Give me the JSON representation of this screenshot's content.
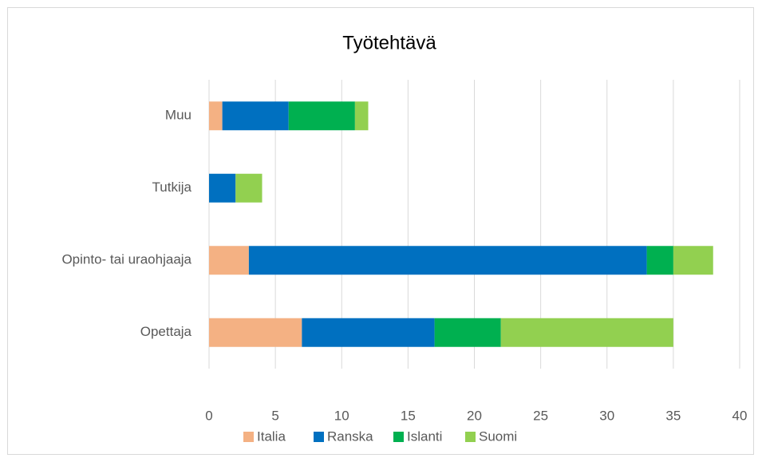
{
  "chart_data": {
    "type": "stacked-barh",
    "title": "Työtehtävä",
    "categories": [
      "Opettaja",
      "Opinto- tai uraohjaaja",
      "Tutkija",
      "Muu"
    ],
    "series": [
      {
        "name": "Italia",
        "color": "#f4b183",
        "values": [
          7,
          3,
          0,
          1
        ]
      },
      {
        "name": "Ranska",
        "color": "#0070c0",
        "values": [
          10,
          30,
          2,
          5
        ]
      },
      {
        "name": "Islanti",
        "color": "#00b050",
        "values": [
          5,
          2,
          0,
          5
        ]
      },
      {
        "name": "Suomi",
        "color": "#92d050",
        "values": [
          13,
          3,
          2,
          1
        ]
      }
    ],
    "xlim": [
      0,
      40
    ],
    "xticks": [
      0,
      5,
      10,
      15,
      20,
      25,
      30,
      35,
      40
    ],
    "grid": true,
    "legend": "bottom"
  }
}
